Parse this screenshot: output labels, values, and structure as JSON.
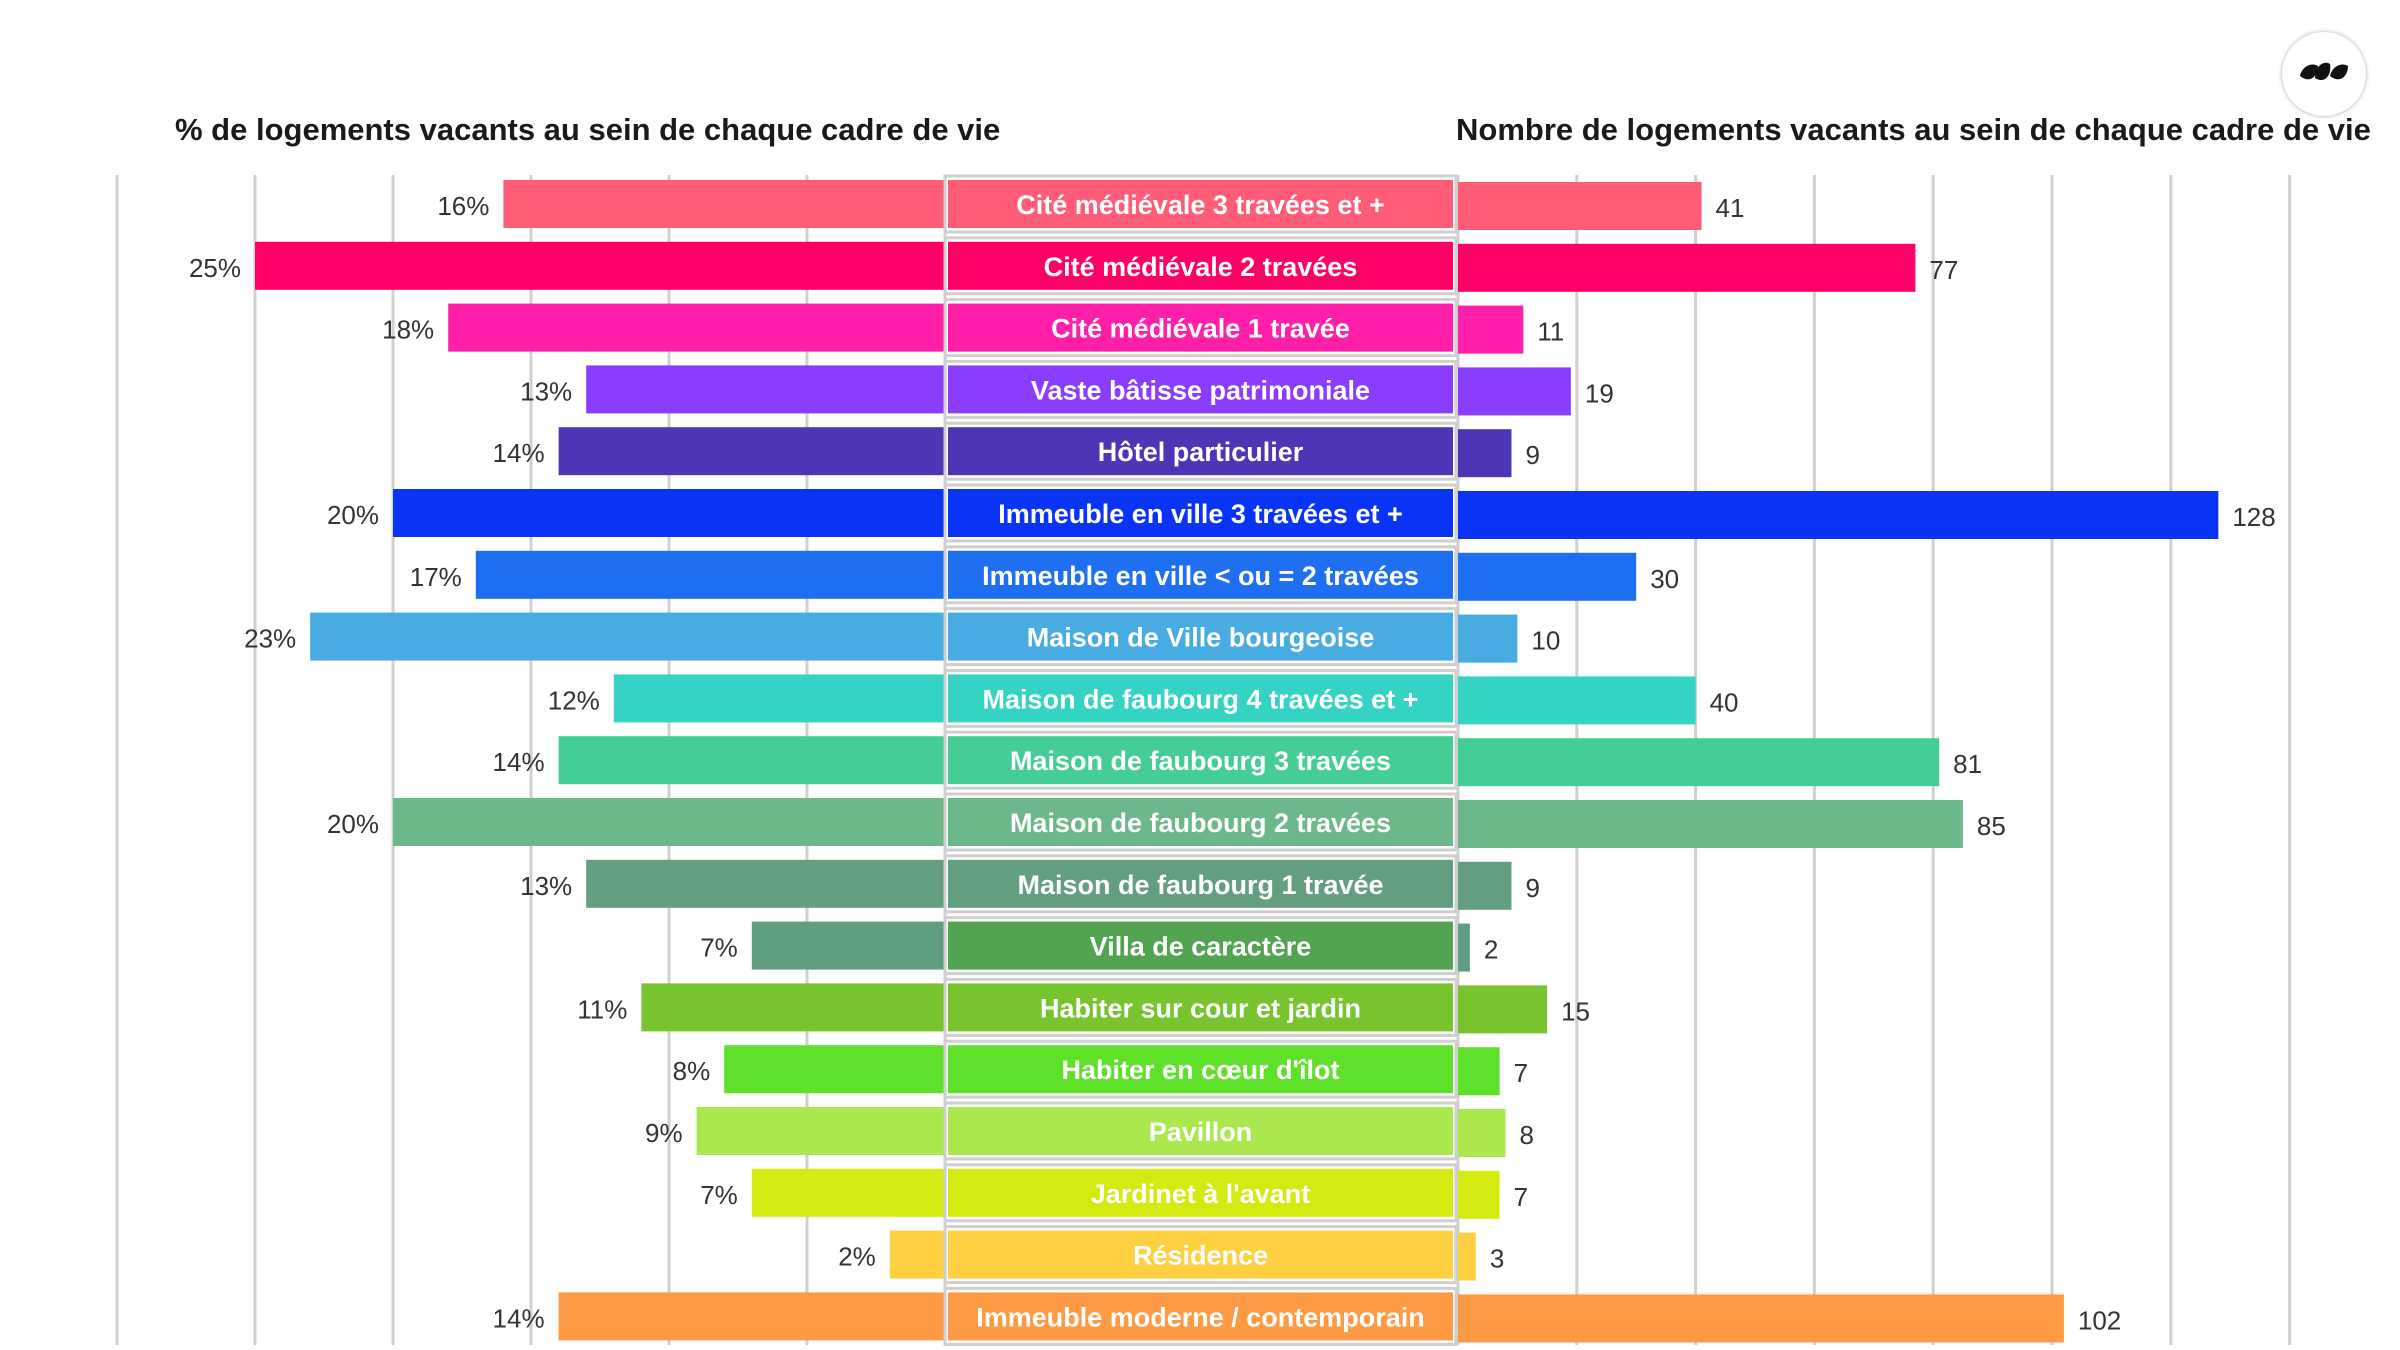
{
  "titles": {
    "left": "% de logements vacants au sein de chaque cadre de vie",
    "right": "Nombre de logements vacants au sein de chaque cadre de vie"
  },
  "logo": {
    "icon": "leaf-logo-icon"
  },
  "chart_data": {
    "type": "bar",
    "orientation": "horizontal",
    "layout": "butterfly",
    "categories": [
      "Cité médiévale 3 travées et +",
      "Cité médiévale 2 travées",
      "Cité médiévale 1 travée",
      "Vaste bâtisse patrimoniale",
      "Hôtel particulier",
      "Immeuble en ville 3 travées et +",
      "Immeuble en ville < ou = 2 travées",
      "Maison de Ville bourgeoise",
      "Maison de faubourg 4 travées et +",
      "Maison de faubourg 3 travées",
      "Maison de faubourg 2 travées",
      "Maison de faubourg 1 travée",
      "Villa de caractère",
      "Habiter sur cour et jardin",
      "Habiter en cœur d'îlot",
      "Pavillon",
      "Jardinet à l'avant",
      "Résidence",
      "Immeuble  moderne / contemporain"
    ],
    "colors": [
      "#FF5C77",
      "#FF0066",
      "#FF1FA8",
      "#8A3CFF",
      "#4E35B5",
      "#0A34F5",
      "#1F6FF2",
      "#48ACE3",
      "#34D3C4",
      "#44CE96",
      "#6DB88A",
      "#639E80",
      "#5F9E80",
      "#78C42E",
      "#5FE02A",
      "#ABE84E",
      "#D4EA10",
      "#FFD142",
      "#FF9A44"
    ],
    "label_colors": [
      "#FF5C77",
      "#FF0066",
      "#FF1FA8",
      "#8A3CFF",
      "#4E35B5",
      "#0A34F5",
      "#1F6FF2",
      "#48ACE3",
      "#34D3C4",
      "#44CE96",
      "#6DB88A",
      "#639E80",
      "#52A352",
      "#78C42E",
      "#5FE02A",
      "#ABE84E",
      "#D4EA10",
      "#FFD142",
      "#FF9A44"
    ],
    "series": [
      {
        "values": [
          16,
          25,
          18,
          13,
          14,
          20,
          17,
          23,
          12,
          14,
          20,
          13,
          7,
          11,
          8,
          9,
          7,
          2,
          14
        ],
        "labels": [
          "16%",
          "25%",
          "18%",
          "13%",
          "14%",
          "20%",
          "17%",
          "23%",
          "12%",
          "14%",
          "20%",
          "13%",
          "7%",
          "11%",
          "8%",
          "9%",
          "7%",
          "2%",
          "14%"
        ]
      },
      {
        "values": [
          41,
          77,
          11,
          19,
          9,
          128,
          30,
          10,
          40,
          81,
          85,
          9,
          2,
          15,
          7,
          8,
          7,
          3,
          102
        ],
        "labels": [
          "41",
          "77",
          "11",
          "19",
          "9",
          "128",
          "30",
          "10",
          "40",
          "81",
          "85",
          "9",
          "2",
          "15",
          "7",
          "8",
          "7",
          "3",
          "102"
        ]
      }
    ],
    "left_axis": {
      "unit": "%",
      "range": [
        0,
        30
      ],
      "gridline_step": 5
    },
    "right_axis": {
      "range": [
        0,
        140
      ],
      "gridline_step": 20
    },
    "grid": true,
    "legend": "none"
  }
}
